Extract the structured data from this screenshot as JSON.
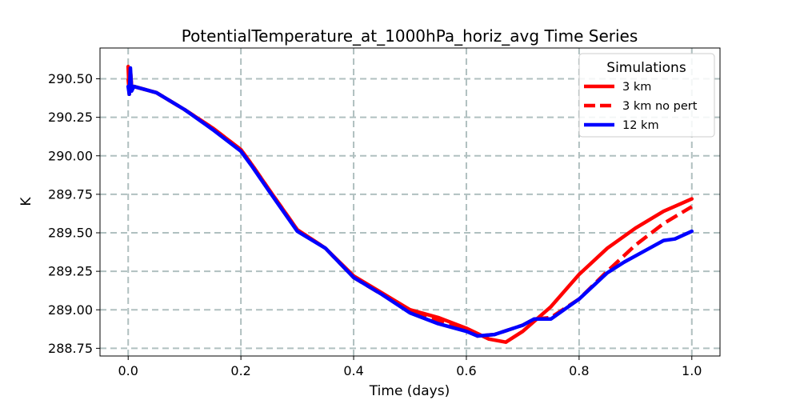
{
  "chart_data": {
    "type": "line",
    "title": "PotentialTemperature_at_1000hPa_horiz_avg Time Series",
    "xlabel": "Time (days)",
    "ylabel": "K",
    "xlim": [
      -0.05,
      1.05
    ],
    "ylim": [
      288.7,
      290.7
    ],
    "xticks": [
      0.0,
      0.2,
      0.4,
      0.6,
      0.8,
      1.0
    ],
    "xtick_labels": [
      "0.0",
      "0.2",
      "0.4",
      "0.6",
      "0.8",
      "1.0"
    ],
    "yticks": [
      288.75,
      289.0,
      289.25,
      289.5,
      289.75,
      290.0,
      290.25,
      290.5
    ],
    "ytick_labels": [
      "288.75",
      "289.00",
      "289.25",
      "289.50",
      "289.75",
      "290.00",
      "290.25",
      "290.50"
    ],
    "grid": true,
    "legend": {
      "title": "Simulations",
      "placement": "top-right"
    },
    "series": [
      {
        "name": "3 km",
        "color": "#ff0000",
        "style": "solid",
        "x": [
          0.0,
          0.002,
          0.004,
          0.006,
          0.01,
          0.05,
          0.1,
          0.15,
          0.2,
          0.22,
          0.25,
          0.3,
          0.35,
          0.4,
          0.45,
          0.5,
          0.55,
          0.6,
          0.64,
          0.67,
          0.7,
          0.75,
          0.8,
          0.85,
          0.9,
          0.95,
          1.0
        ],
        "y": [
          290.58,
          290.4,
          290.55,
          290.45,
          290.45,
          290.41,
          290.3,
          290.18,
          290.04,
          289.94,
          289.78,
          289.52,
          289.4,
          289.22,
          289.11,
          289.0,
          288.95,
          288.88,
          288.81,
          288.79,
          288.86,
          289.02,
          289.23,
          289.4,
          289.53,
          289.64,
          289.72
        ]
      },
      {
        "name": "3 km no pert",
        "color": "#ff0000",
        "style": "dashed",
        "x": [
          0.0,
          0.002,
          0.004,
          0.006,
          0.01,
          0.05,
          0.1,
          0.15,
          0.2,
          0.22,
          0.25,
          0.3,
          0.35,
          0.4,
          0.45,
          0.5,
          0.55,
          0.6,
          0.62,
          0.65,
          0.7,
          0.72,
          0.75,
          0.8,
          0.85,
          0.9,
          0.95,
          1.0
        ],
        "y": [
          290.5,
          290.42,
          290.56,
          290.44,
          290.45,
          290.41,
          290.3,
          290.18,
          290.04,
          289.94,
          289.78,
          289.52,
          289.4,
          289.21,
          289.1,
          288.99,
          288.93,
          288.87,
          288.83,
          288.84,
          288.9,
          288.94,
          288.95,
          289.07,
          289.25,
          289.42,
          289.56,
          289.67
        ]
      },
      {
        "name": "12 km",
        "color": "#0000ff",
        "style": "solid",
        "x": [
          0.0,
          0.002,
          0.004,
          0.006,
          0.01,
          0.05,
          0.1,
          0.15,
          0.2,
          0.22,
          0.25,
          0.3,
          0.35,
          0.4,
          0.45,
          0.5,
          0.55,
          0.6,
          0.62,
          0.65,
          0.7,
          0.72,
          0.75,
          0.8,
          0.85,
          0.88,
          0.92,
          0.95,
          0.97,
          1.0
        ],
        "y": [
          290.45,
          290.4,
          290.57,
          290.42,
          290.45,
          290.41,
          290.3,
          290.17,
          290.03,
          289.93,
          289.77,
          289.51,
          289.4,
          289.21,
          289.1,
          288.98,
          288.91,
          288.86,
          288.83,
          288.84,
          288.9,
          288.94,
          288.94,
          289.07,
          289.24,
          289.31,
          289.39,
          289.45,
          289.46,
          289.51
        ]
      }
    ]
  }
}
